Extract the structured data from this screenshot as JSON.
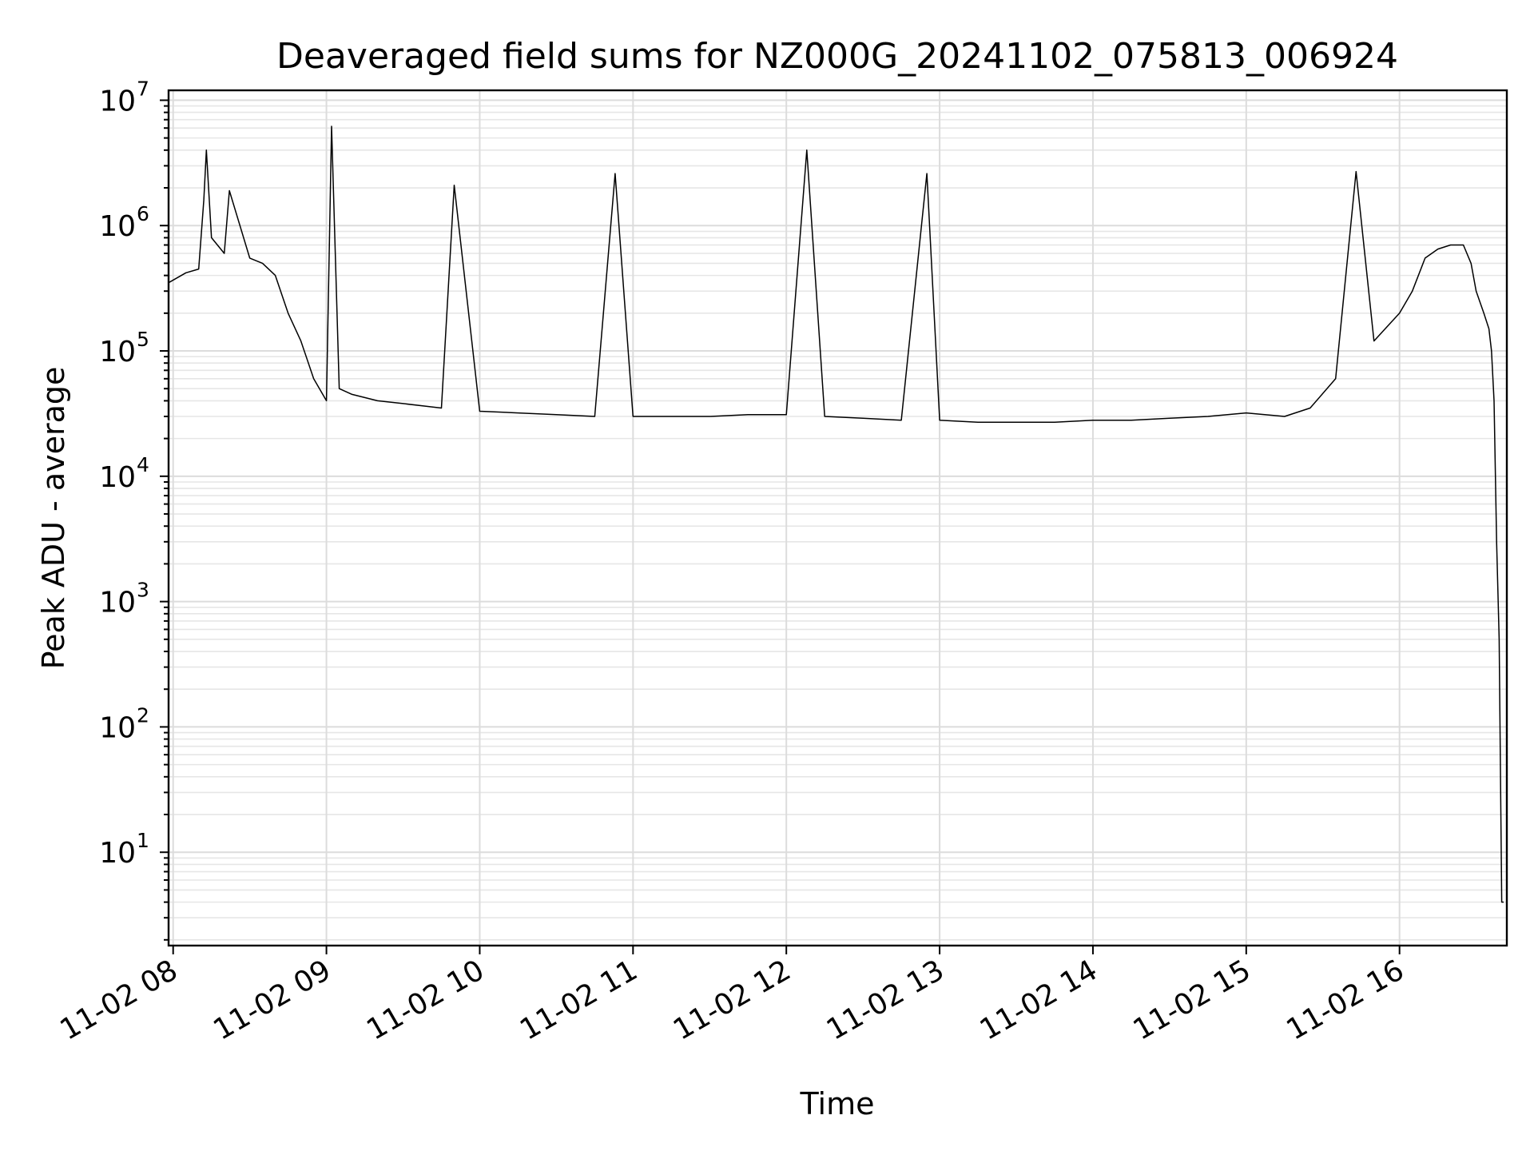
{
  "chart_data": {
    "type": "line",
    "title": "Deaveraged field sums for NZ000G_20241102_075813_006924",
    "xlabel": "Time",
    "ylabel": "Peak ADU - average",
    "yscale": "log",
    "ylim": [
      1.8,
      12000000
    ],
    "xlim": [
      "2024-11-02 07:58:13",
      "2024-11-02 16:42:00"
    ],
    "grid": true,
    "x_ticks": [
      "11-02 08",
      "11-02 09",
      "11-02 10",
      "11-02 11",
      "11-02 12",
      "11-02 13",
      "11-02 14",
      "11-02 15",
      "11-02 16"
    ],
    "y_ticks": [
      {
        "base": "10",
        "exp": "1"
      },
      {
        "base": "10",
        "exp": "2"
      },
      {
        "base": "10",
        "exp": "3"
      },
      {
        "base": "10",
        "exp": "4"
      },
      {
        "base": "10",
        "exp": "5"
      },
      {
        "base": "10",
        "exp": "6"
      },
      {
        "base": "10",
        "exp": "7"
      }
    ],
    "series": [
      {
        "color": "#000000",
        "x": [
          "2024-11-02 07:58:13",
          "2024-11-02 08:05",
          "2024-11-02 08:10",
          "2024-11-02 08:12",
          "2024-11-02 08:13",
          "2024-11-02 08:15",
          "2024-11-02 08:20",
          "2024-11-02 08:22",
          "2024-11-02 08:30",
          "2024-11-02 08:35",
          "2024-11-02 08:40",
          "2024-11-02 08:45",
          "2024-11-02 08:50",
          "2024-11-02 08:55",
          "2024-11-02 09:00",
          "2024-11-02 09:02",
          "2024-11-02 09:05",
          "2024-11-02 09:10",
          "2024-11-02 09:20",
          "2024-11-02 09:30",
          "2024-11-02 09:45",
          "2024-11-02 09:50",
          "2024-11-02 10:00",
          "2024-11-02 10:15",
          "2024-11-02 10:30",
          "2024-11-02 10:45",
          "2024-11-02 10:53",
          "2024-11-02 11:00",
          "2024-11-02 11:15",
          "2024-11-02 11:30",
          "2024-11-02 11:45",
          "2024-11-02 12:00",
          "2024-11-02 12:08",
          "2024-11-02 12:15",
          "2024-11-02 12:30",
          "2024-11-02 12:45",
          "2024-11-02 12:55",
          "2024-11-02 13:00",
          "2024-11-02 13:15",
          "2024-11-02 13:30",
          "2024-11-02 13:45",
          "2024-11-02 14:00",
          "2024-11-02 14:15",
          "2024-11-02 14:30",
          "2024-11-02 14:45",
          "2024-11-02 15:00",
          "2024-11-02 15:15",
          "2024-11-02 15:25",
          "2024-11-02 15:35",
          "2024-11-02 15:43",
          "2024-11-02 15:50",
          "2024-11-02 16:00",
          "2024-11-02 16:05",
          "2024-11-02 16:10",
          "2024-11-02 16:15",
          "2024-11-02 16:20",
          "2024-11-02 16:25",
          "2024-11-02 16:28",
          "2024-11-02 16:30",
          "2024-11-02 16:33",
          "2024-11-02 16:35",
          "2024-11-02 16:36",
          "2024-11-02 16:37",
          "2024-11-02 16:38",
          "2024-11-02 16:39",
          "2024-11-02 16:40",
          "2024-11-02 16:42"
        ],
        "y": [
          350000,
          420000,
          450000,
          1600000,
          4000000,
          800000,
          600000,
          1900000,
          550000,
          500000,
          400000,
          200000,
          120000,
          60000,
          40000,
          6200000,
          50000,
          45000,
          40000,
          38000,
          35000,
          2100000,
          33000,
          32000,
          31000,
          30000,
          2600000,
          30000,
          30000,
          30000,
          31000,
          31000,
          4000000,
          30000,
          29000,
          28000,
          2600000,
          28000,
          27000,
          27000,
          27000,
          28000,
          28000,
          29000,
          30000,
          32000,
          30000,
          35000,
          60000,
          2700000,
          120000,
          200000,
          300000,
          550000,
          650000,
          700000,
          700000,
          500000,
          300000,
          200000,
          150000,
          100000,
          40000,
          3000,
          500,
          4,
          4
        ]
      }
    ]
  }
}
